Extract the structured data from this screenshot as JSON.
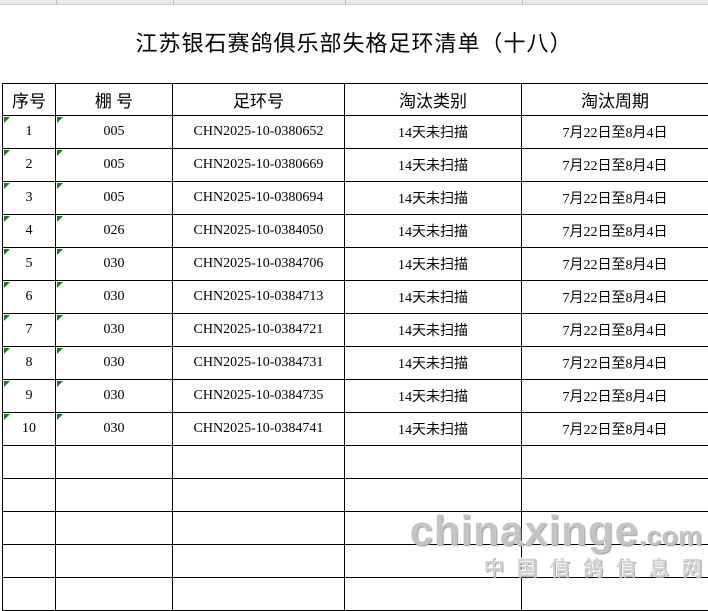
{
  "title": "江苏银石赛鸽俱乐部失格足环清单（十八）",
  "table": {
    "headers": [
      "序号",
      "棚  号",
      "足环号",
      "淘汰类别",
      "淘汰周期"
    ],
    "rows": [
      [
        "1",
        "005",
        "CHN2025-10-0380652",
        "14天未扫描",
        "7月22日至8月4日"
      ],
      [
        "2",
        "005",
        "CHN2025-10-0380669",
        "14天未扫描",
        "7月22日至8月4日"
      ],
      [
        "3",
        "005",
        "CHN2025-10-0380694",
        "14天未扫描",
        "7月22日至8月4日"
      ],
      [
        "4",
        "026",
        "CHN2025-10-0384050",
        "14天未扫描",
        "7月22日至8月4日"
      ],
      [
        "5",
        "030",
        "CHN2025-10-0384706",
        "14天未扫描",
        "7月22日至8月4日"
      ],
      [
        "6",
        "030",
        "CHN2025-10-0384713",
        "14天未扫描",
        "7月22日至8月4日"
      ],
      [
        "7",
        "030",
        "CHN2025-10-0384721",
        "14天未扫描",
        "7月22日至8月4日"
      ],
      [
        "8",
        "030",
        "CHN2025-10-0384731",
        "14天未扫描",
        "7月22日至8月4日"
      ],
      [
        "9",
        "030",
        "CHN2025-10-0384735",
        "14天未扫描",
        "7月22日至8月4日"
      ],
      [
        "10",
        "030",
        "CHN2025-10-0384741",
        "14天未扫描",
        "7月22日至8月4日"
      ]
    ],
    "empty_row_count": 5
  },
  "watermark": {
    "brand": "chinaxinge",
    "tld": ".com",
    "chinese": "中国信鸽信息网"
  },
  "colors": {
    "grid_line": "#000000",
    "flag_green": "#1e7a1e",
    "watermark_gray": "#c4c4c4",
    "top_strip_gray": "#e9e9e9"
  }
}
